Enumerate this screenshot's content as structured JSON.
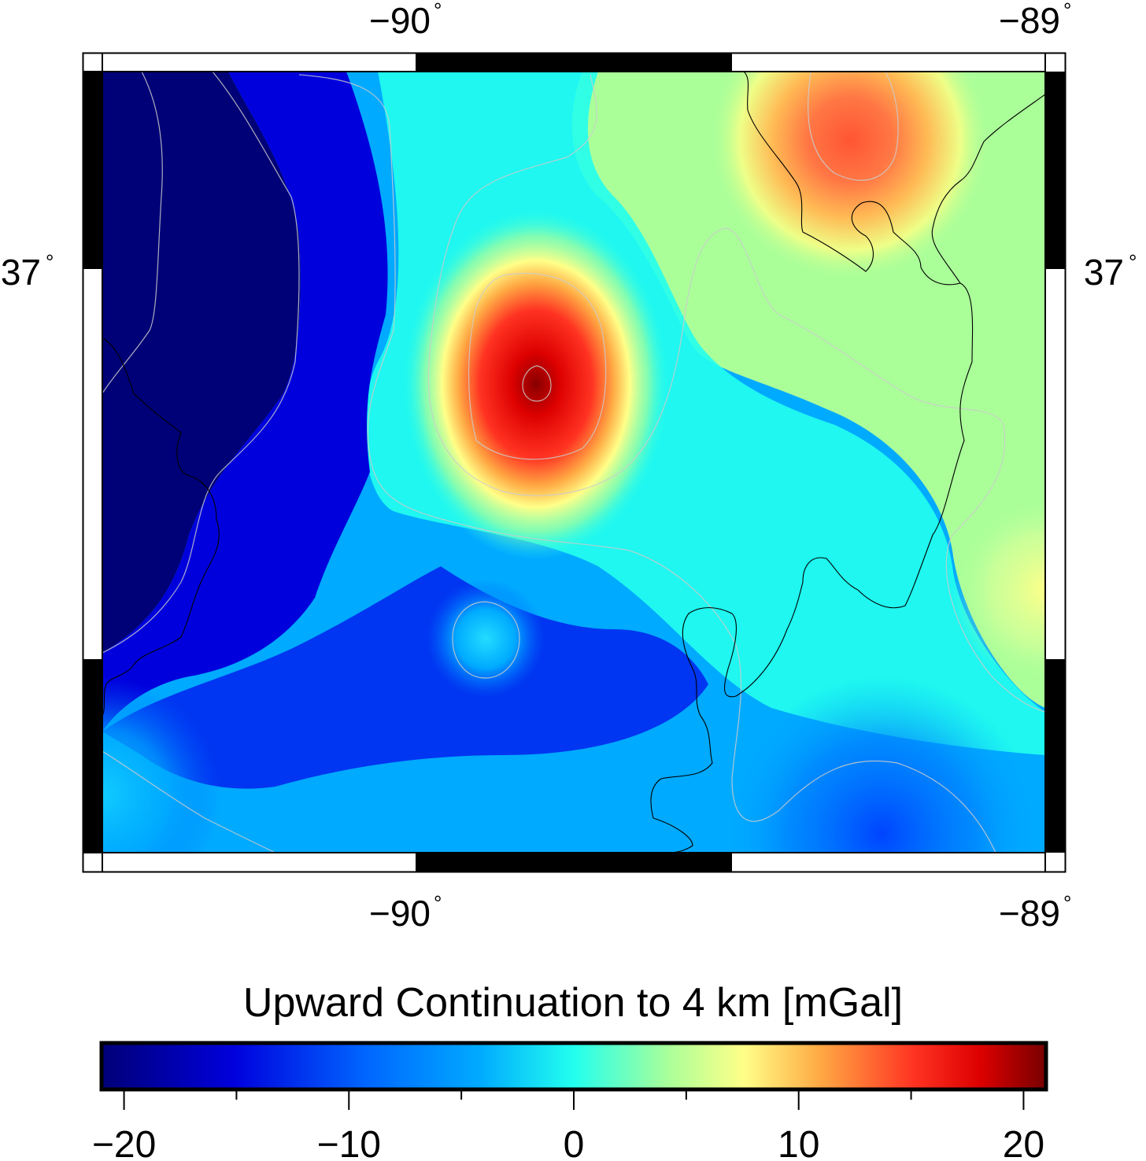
{
  "map": {
    "title": "Upward Continuation to 4 km [mGal]",
    "longitude_ticks": [
      {
        "label": "−90",
        "degree": "°",
        "value": -90
      },
      {
        "label": "−89",
        "degree": "°",
        "value": -89
      }
    ],
    "latitude_ticks": [
      {
        "label": "37",
        "degree": "°",
        "value": 37
      }
    ],
    "colorbar": {
      "unit": "mGal",
      "min": -21,
      "max": 21,
      "tick_labels": [
        "−20",
        "−10",
        "0",
        "10",
        "20"
      ],
      "tick_values": [
        -20,
        -10,
        0,
        10,
        20
      ],
      "minor_tick_values": [
        -15,
        -5,
        5,
        15
      ],
      "colormap": [
        "#000077",
        "#0000dd",
        "#0066ff",
        "#00aaff",
        "#22ffee",
        "#aaff99",
        "#ffdd55",
        "#ff6633",
        "#dd0000",
        "#770000"
      ]
    },
    "anomalies": [
      {
        "label": "central high",
        "peak_mgal": 20
      },
      {
        "label": "northeast high",
        "peak_mgal": 13
      },
      {
        "label": "western low",
        "peak_mgal": -20
      },
      {
        "label": "southern local high",
        "peak_mgal": -4
      }
    ]
  }
}
